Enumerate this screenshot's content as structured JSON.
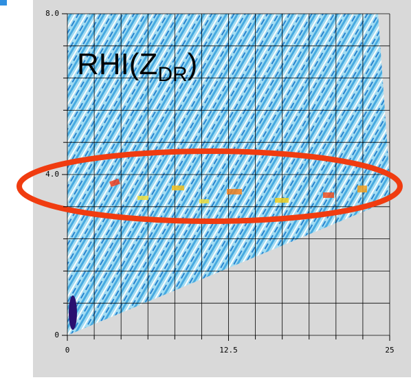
{
  "chart_data": {
    "type": "rhi",
    "title": "RHI(Z",
    "title_subscript": "DR",
    "title_suffix": ")",
    "xlim": [
      0,
      25
    ],
    "ylim": [
      0,
      8
    ],
    "xticks": [
      0,
      12.5,
      25
    ],
    "yticks": [
      0,
      {
        "value": 4,
        "label": "4.0"
      },
      {
        "value": 8,
        "label": "8.0"
      }
    ],
    "grid": true
  }
}
